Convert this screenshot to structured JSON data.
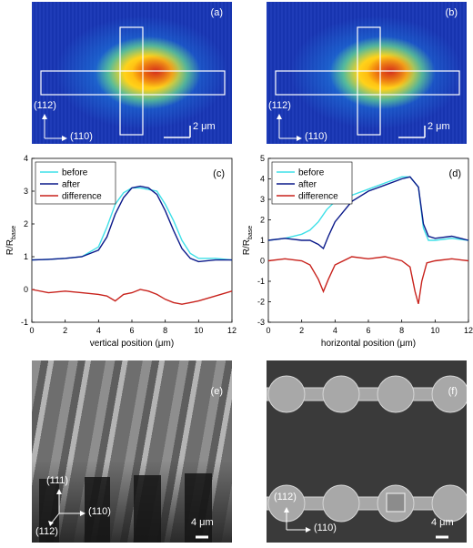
{
  "panels": {
    "a": {
      "label": "(a)",
      "dir_up": "(112)",
      "dir_right": "(110)",
      "scale": "2 μm"
    },
    "b": {
      "label": "(b)",
      "dir_up": "(112)",
      "dir_right": "(110)",
      "scale": "2 μm"
    },
    "e": {
      "label": "(e)",
      "dir_up": "(111)",
      "dir_right": "(110)",
      "dir_down": "(112)",
      "scale": "4 μm"
    },
    "f": {
      "label": "(f)",
      "dir_up": "(112)",
      "dir_right": "(110)",
      "scale": "4 μm"
    }
  },
  "colors": {
    "before": "#3fe0e8",
    "after": "#0b1a8a",
    "difference": "#c8221c"
  },
  "chart_data": [
    {
      "type": "line",
      "panel_label": "(c)",
      "xlabel": "vertical position (μm)",
      "ylabel": "R/R",
      "ylabel_sub": "base",
      "xlim": [
        0,
        12
      ],
      "ylim": [
        -1,
        4
      ],
      "xticks": [
        0,
        2,
        4,
        6,
        8,
        10,
        12
      ],
      "yticks": [
        -1,
        0,
        1,
        2,
        3,
        4
      ],
      "legend": "top-left",
      "series": [
        {
          "name": "before",
          "x": [
            0,
            1,
            2,
            3,
            4,
            4.5,
            5,
            5.5,
            6,
            6.5,
            7,
            7.5,
            8,
            8.5,
            9,
            9.5,
            10,
            11,
            12
          ],
          "values": [
            0.9,
            0.92,
            0.95,
            1.0,
            1.3,
            1.9,
            2.6,
            2.95,
            3.1,
            3.1,
            3.05,
            3.0,
            2.6,
            2.1,
            1.5,
            1.1,
            0.95,
            0.95,
            0.9
          ]
        },
        {
          "name": "after",
          "x": [
            0,
            1,
            2,
            3,
            4,
            4.5,
            5,
            5.5,
            6,
            6.5,
            7,
            7.5,
            8,
            8.5,
            9,
            9.5,
            10,
            11,
            12
          ],
          "values": [
            0.9,
            0.92,
            0.95,
            1.0,
            1.2,
            1.6,
            2.3,
            2.8,
            3.1,
            3.15,
            3.1,
            2.9,
            2.4,
            1.8,
            1.25,
            0.95,
            0.85,
            0.9,
            0.9
          ]
        },
        {
          "name": "difference",
          "x": [
            0,
            1,
            2,
            3,
            4,
            4.5,
            5,
            5.5,
            6,
            6.5,
            7,
            7.5,
            8,
            8.5,
            9,
            9.5,
            10,
            11,
            12
          ],
          "values": [
            0,
            -0.1,
            -0.05,
            -0.1,
            -0.15,
            -0.2,
            -0.35,
            -0.15,
            -0.1,
            0.0,
            -0.05,
            -0.15,
            -0.3,
            -0.4,
            -0.45,
            -0.4,
            -0.35,
            -0.2,
            -0.05
          ]
        }
      ]
    },
    {
      "type": "line",
      "panel_label": "(d)",
      "xlabel": "horizontal position (μm)",
      "ylabel": "R/R",
      "ylabel_sub": "base",
      "xlim": [
        0,
        12
      ],
      "ylim": [
        -3,
        5
      ],
      "xticks": [
        0,
        2,
        4,
        6,
        8,
        10,
        12
      ],
      "yticks": [
        -3,
        -2,
        -1,
        0,
        1,
        2,
        3,
        4,
        5
      ],
      "legend": "top-left",
      "series": [
        {
          "name": "before",
          "x": [
            0,
            1,
            2,
            2.5,
            3,
            3.5,
            4,
            5,
            6,
            7,
            8,
            8.5,
            9,
            9.3,
            9.6,
            10,
            11,
            12
          ],
          "values": [
            1.0,
            1.1,
            1.3,
            1.5,
            1.9,
            2.5,
            2.9,
            3.2,
            3.5,
            3.8,
            4.1,
            4.1,
            3.6,
            1.6,
            1.0,
            1.0,
            1.1,
            1.0
          ]
        },
        {
          "name": "after",
          "x": [
            0,
            1,
            2,
            2.5,
            3,
            3.3,
            3.6,
            4,
            5,
            6,
            7,
            8,
            8.5,
            9,
            9.3,
            9.6,
            10,
            11,
            12
          ],
          "values": [
            1.0,
            1.1,
            1.0,
            1.0,
            0.8,
            0.6,
            1.2,
            1.9,
            2.9,
            3.4,
            3.7,
            4.0,
            4.1,
            3.6,
            1.8,
            1.2,
            1.1,
            1.2,
            1.0
          ]
        },
        {
          "name": "difference",
          "x": [
            0,
            1,
            2,
            2.5,
            3,
            3.3,
            3.6,
            4,
            5,
            6,
            7,
            8,
            8.5,
            8.8,
            9.0,
            9.2,
            9.5,
            10,
            11,
            12
          ],
          "values": [
            0.0,
            0.1,
            0.0,
            -0.2,
            -0.9,
            -1.5,
            -0.9,
            -0.2,
            0.2,
            0.1,
            0.2,
            0.0,
            -0.3,
            -1.5,
            -2.1,
            -1.0,
            -0.1,
            0.0,
            0.1,
            0.0
          ]
        }
      ]
    }
  ]
}
